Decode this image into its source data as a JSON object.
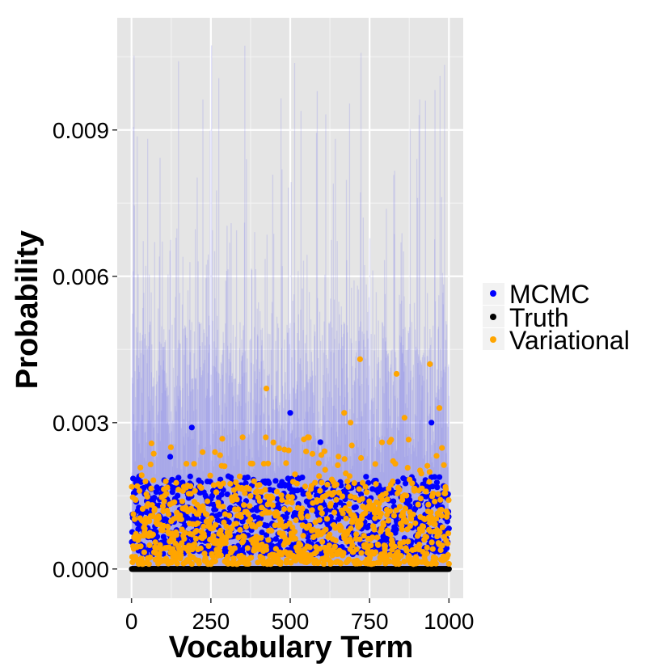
{
  "chart_data": {
    "type": "scatter",
    "xlabel": "Vocabulary Term",
    "ylabel": "Probability",
    "xlim": [
      -45,
      1045
    ],
    "ylim": [
      -0.0006,
      0.0113
    ],
    "x_ticks": [
      0,
      250,
      500,
      750,
      1000
    ],
    "x_tick_labels": [
      "0",
      "250",
      "500",
      "750",
      "1000"
    ],
    "y_ticks": [
      0.0,
      0.003,
      0.006,
      0.009
    ],
    "y_tick_labels": [
      "0.000",
      "0.003",
      "0.006",
      "0.009"
    ],
    "grid": true,
    "legend_position": "right",
    "n_terms": 1000,
    "credible_interval": {
      "color": "#7a7aee",
      "lower": 0.0,
      "upper_typical": 0.0035,
      "upper_max": 0.0108
    },
    "series": [
      {
        "name": "MCMC",
        "color": "#0000ff",
        "typical_range": [
          0.0003,
          0.0019
        ],
        "notable_points": [
          {
            "x": 190,
            "y": 0.0029
          },
          {
            "x": 122,
            "y": 0.0023
          },
          {
            "x": 500,
            "y": 0.0032
          },
          {
            "x": 945,
            "y": 0.003
          },
          {
            "x": 595,
            "y": 0.0026
          },
          {
            "x": 25,
            "y": 0.0019
          },
          {
            "x": 305,
            "y": 0.0019
          }
        ]
      },
      {
        "name": "Truth",
        "color": "#000000",
        "value": 0.0
      },
      {
        "name": "Variational",
        "color": "#ffa500",
        "typical_range": [
          0.0001,
          0.0018
        ],
        "notable_points": [
          {
            "x": 720,
            "y": 0.0043
          },
          {
            "x": 940,
            "y": 0.0042
          },
          {
            "x": 835,
            "y": 0.004
          },
          {
            "x": 425,
            "y": 0.0037
          },
          {
            "x": 970,
            "y": 0.0033
          },
          {
            "x": 860,
            "y": 0.0031
          },
          {
            "x": 670,
            "y": 0.0032
          },
          {
            "x": 690,
            "y": 0.003
          },
          {
            "x": 555,
            "y": 0.0027
          },
          {
            "x": 350,
            "y": 0.0027
          }
        ]
      }
    ],
    "legend": [
      {
        "label": "MCMC",
        "color": "#0000ff"
      },
      {
        "label": "Truth",
        "color": "#000000"
      },
      {
        "label": "Variational",
        "color": "#ffa500"
      }
    ]
  }
}
